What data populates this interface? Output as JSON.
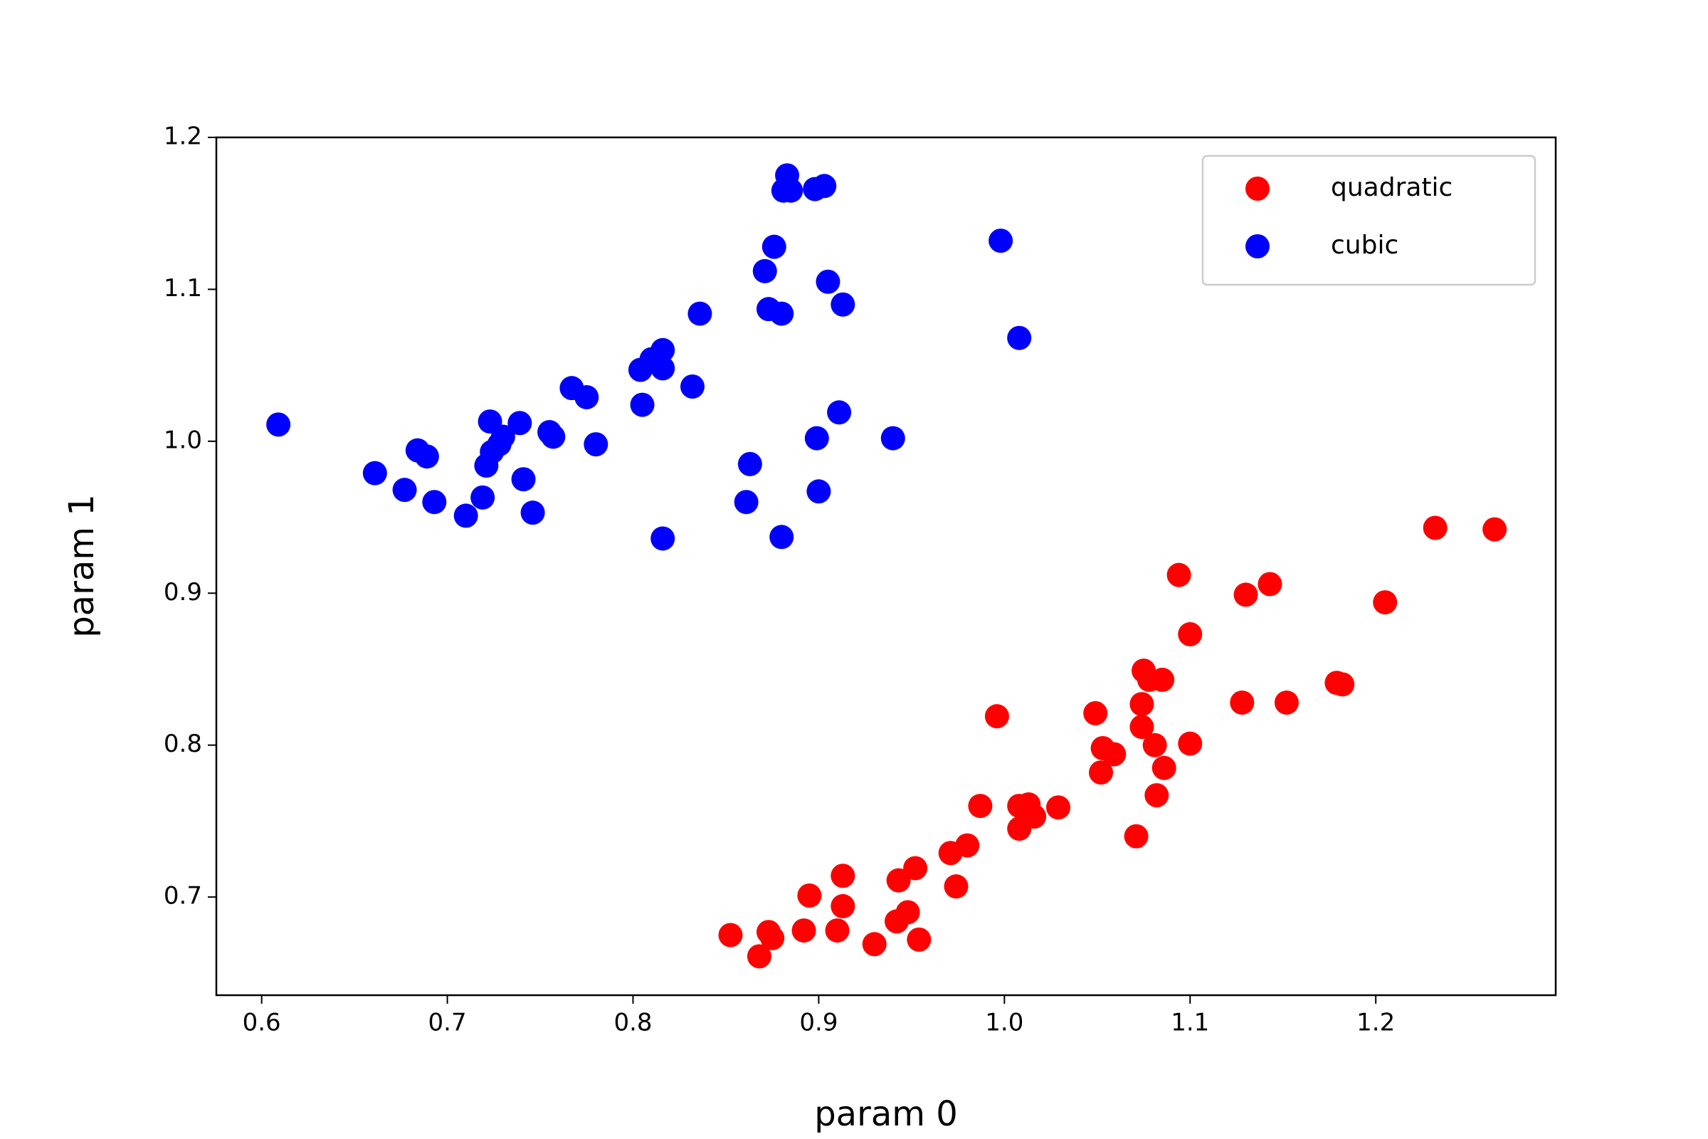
{
  "chart_data": {
    "type": "scatter",
    "x_label": "param 0",
    "y_label": "param 1",
    "xlim": [
      0.5756,
      1.2969
    ],
    "ylim": [
      0.6354,
      1.2
    ],
    "xticks": [
      0.6,
      0.7,
      0.8,
      0.9,
      {
        "value": 1.0,
        "label": "1.0"
      },
      1.1,
      1.2
    ],
    "yticks": [
      0.7,
      0.8,
      0.9,
      {
        "value": 1.0,
        "label": "1.0"
      },
      1.1,
      1.2
    ],
    "grid": false,
    "legend": "upper right",
    "series": [
      {
        "name": "quadratic",
        "color": "#ff0000",
        "x": [
          0.8525,
          0.868,
          0.873,
          0.875,
          0.892,
          0.895,
          0.91,
          0.913,
          0.913,
          0.93,
          0.942,
          0.943,
          0.948,
          0.952,
          0.954,
          0.971,
          0.974,
          0.98,
          0.987,
          0.996,
          1.008,
          1.008,
          1.013,
          1.016,
          1.029,
          1.049,
          1.052,
          1.053,
          1.059,
          1.071,
          1.074,
          1.074,
          1.075,
          1.078,
          1.081,
          1.082,
          1.085,
          1.086,
          1.094,
          1.1,
          1.1,
          1.128,
          1.13,
          1.143,
          1.152,
          1.179,
          1.182,
          1.205,
          1.232,
          1.264
        ],
        "y": [
          0.675,
          0.661,
          0.677,
          0.673,
          0.678,
          0.701,
          0.678,
          0.714,
          0.694,
          0.669,
          0.684,
          0.711,
          0.69,
          0.719,
          0.672,
          0.729,
          0.707,
          0.734,
          0.76,
          0.819,
          0.76,
          0.745,
          0.761,
          0.753,
          0.759,
          0.821,
          0.782,
          0.798,
          0.794,
          0.74,
          0.827,
          0.812,
          0.849,
          0.843,
          0.8,
          0.767,
          0.843,
          0.785,
          0.912,
          0.873,
          0.801,
          0.828,
          0.899,
          0.906,
          0.828,
          0.841,
          0.84,
          0.894,
          0.943,
          0.942
        ]
      },
      {
        "name": "cubic",
        "color": "#0000ff",
        "x": [
          0.609,
          0.661,
          0.677,
          0.684,
          0.689,
          0.693,
          0.71,
          0.719,
          0.721,
          0.723,
          0.724,
          0.728,
          0.73,
          0.739,
          0.741,
          0.746,
          0.755,
          0.757,
          0.767,
          0.775,
          0.78,
          0.804,
          0.805,
          0.81,
          0.816,
          0.816,
          0.816,
          0.832,
          0.836,
          0.861,
          0.863,
          0.871,
          0.873,
          0.876,
          0.88,
          0.88,
          0.881,
          0.883,
          0.885,
          0.898,
          0.899,
          0.9,
          0.903,
          0.905,
          0.911,
          0.913,
          0.94,
          0.998,
          1.008
        ],
        "y": [
          1.011,
          0.979,
          0.968,
          0.994,
          0.99,
          0.96,
          0.951,
          0.963,
          0.984,
          1.013,
          0.993,
          0.998,
          1.003,
          1.012,
          0.975,
          0.953,
          1.006,
          1.003,
          1.035,
          1.029,
          0.998,
          1.047,
          1.024,
          1.054,
          1.048,
          1.06,
          0.936,
          1.036,
          1.084,
          0.96,
          0.985,
          1.112,
          1.087,
          1.128,
          0.937,
          1.084,
          1.165,
          1.175,
          1.165,
          1.166,
          1.002,
          0.967,
          1.168,
          1.105,
          1.019,
          1.09,
          1.002,
          1.132,
          1.068
        ]
      }
    ]
  }
}
